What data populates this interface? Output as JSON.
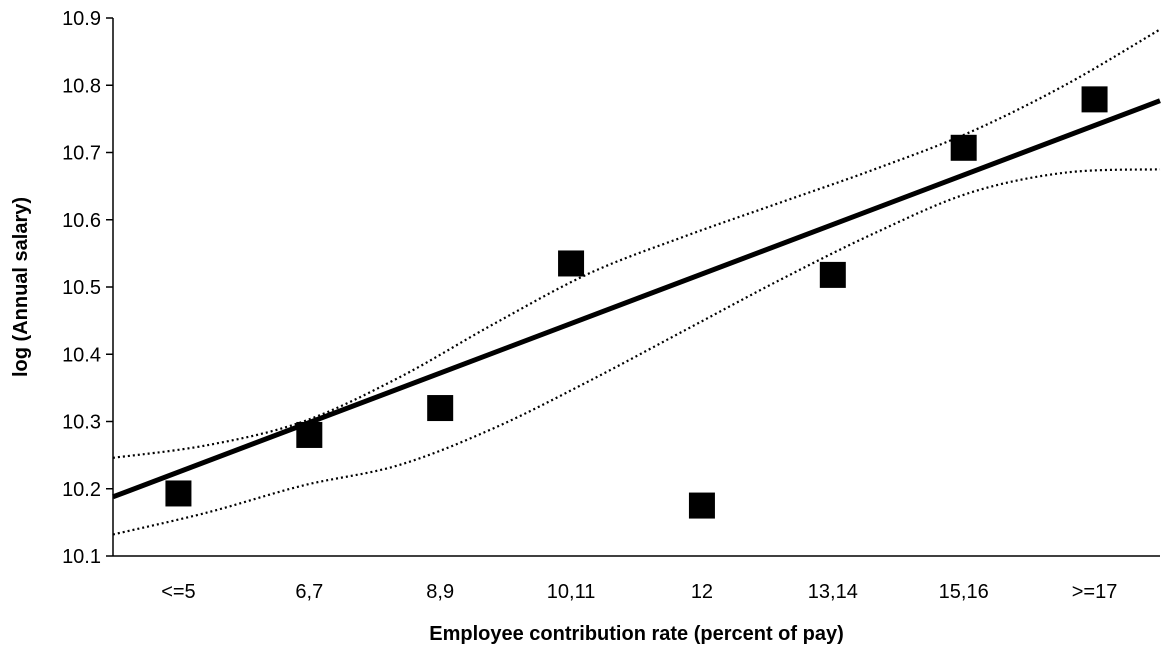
{
  "chart_data": {
    "type": "scatter",
    "title": "",
    "xlabel": "Employee contribution rate (percent of pay)",
    "ylabel": "log (Annual salary)",
    "categories": [
      "<=5",
      "6,7",
      "8,9",
      "10,11",
      "12",
      "13,14",
      "15,16",
      ">=17"
    ],
    "ylim": [
      10.1,
      10.9
    ],
    "yticks": [
      "10.1",
      "10.2",
      "10.3",
      "10.4",
      "10.5",
      "10.6",
      "10.7",
      "10.8",
      "10.9"
    ],
    "grid": false,
    "legend": "none",
    "points": [
      {
        "category": "<=5",
        "y": 10.193
      },
      {
        "category": "6,7",
        "y": 10.28
      },
      {
        "category": "8,9",
        "y": 10.32
      },
      {
        "category": "10,11",
        "y": 10.535
      },
      {
        "category": "12",
        "y": 10.175
      },
      {
        "category": "13,14",
        "y": 10.518
      },
      {
        "category": "15,16",
        "y": 10.707
      },
      {
        "category": ">=17",
        "y": 10.779
      }
    ],
    "fit_line": {
      "y_start": 10.188,
      "y_end": 10.777
    },
    "confidence_upper": [
      10.246,
      10.265,
      10.3,
      10.365,
      10.445,
      10.52,
      10.575,
      10.625,
      10.675,
      10.73,
      10.8,
      10.883
    ],
    "confidence_lower": [
      10.132,
      10.165,
      10.205,
      10.235,
      10.29,
      10.36,
      10.435,
      10.51,
      10.58,
      10.64,
      10.67,
      10.675
    ],
    "colors": {
      "marker": "#000000",
      "line": "#000000",
      "axis": "#000000"
    }
  }
}
